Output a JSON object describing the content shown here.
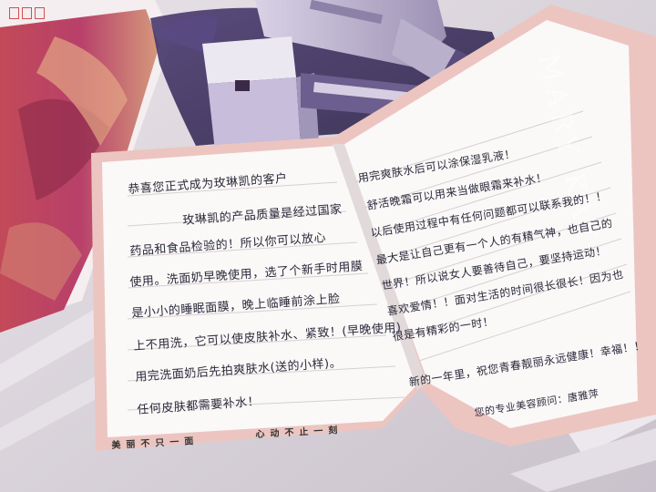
{
  "card": {
    "brand": "MARY KAY",
    "left_page": {
      "lines": [
        "恭喜您正式成为玫琳凯的客户",
        "玫琳凯的产品质量是经过国家",
        "药品和食品检验的！所以你可以放心",
        "使用。洗面奶早晚使用，选了个新手时用膜",
        "是小小的睡眠面膜，晚上临睡前涂上脸",
        "上不用洗，它可以使皮肤补水、紧致！(早晚使用)",
        "用完洗面奶后先拍爽肤水(送的小样)。",
        "任何皮肤都需要补水！"
      ]
    },
    "right_page": {
      "lines": [
        "用完爽肤水后可以涂保湿乳液！",
        "舒活晚霜可以用来当做眼霜来补水！",
        "以后使用过程中有任何问题都可以联系我的！！",
        "最大是让自己更有一个人的有精气神，也自己的",
        "世界！所以说女人要善待自己，要坚持运动！",
        "喜欢爱情！！面对生活的时间很长很长！因为也",
        "很是有精彩的一时！"
      ],
      "wish": "新的一年里，祝您青春靓丽永远健康！幸福！！",
      "signature": "您的专业美容顾问：唐雅萍"
    },
    "footer": {
      "left": "美丽不只一面",
      "right": "心动不止一刻"
    }
  },
  "colors": {
    "table": "#dcd6dc",
    "paper": "#fbf8f8",
    "card_border": "#ecc5c0",
    "pouch": "#3a2d5a",
    "ink": "#2a2a3a"
  }
}
